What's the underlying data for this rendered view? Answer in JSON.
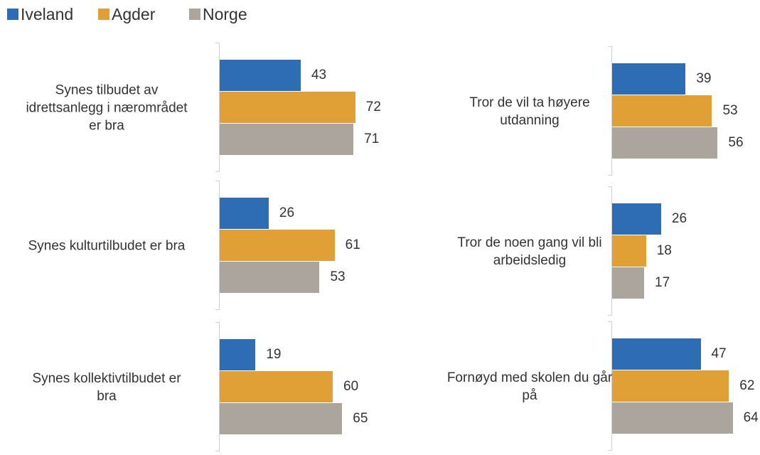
{
  "chart_data": {
    "type": "bar",
    "orientation": "horizontal",
    "categories": [
      "Synes tilbudet av\nidrettsanlegg i nærområdet\ner bra",
      "Synes kulturtilbudet er bra",
      "Synes kollektivtilbudet er\nbra",
      "Tror de vil ta høyere\nutdanning",
      "Tror de noen gang vil bli\narbeidsledig",
      "Fornøyd med skolen du går\npå"
    ],
    "series": [
      {
        "name": "Iveland",
        "color": "#2e6db4",
        "values": [
          43,
          26,
          19,
          39,
          26,
          47
        ]
      },
      {
        "name": "Agder",
        "color": "#e0a035",
        "values": [
          72,
          61,
          60,
          53,
          18,
          62
        ]
      },
      {
        "name": "Norge",
        "color": "#aba59e",
        "values": [
          71,
          53,
          65,
          56,
          17,
          64
        ]
      }
    ],
    "xlim": [
      0,
      100
    ],
    "legend": "top-left"
  }
}
